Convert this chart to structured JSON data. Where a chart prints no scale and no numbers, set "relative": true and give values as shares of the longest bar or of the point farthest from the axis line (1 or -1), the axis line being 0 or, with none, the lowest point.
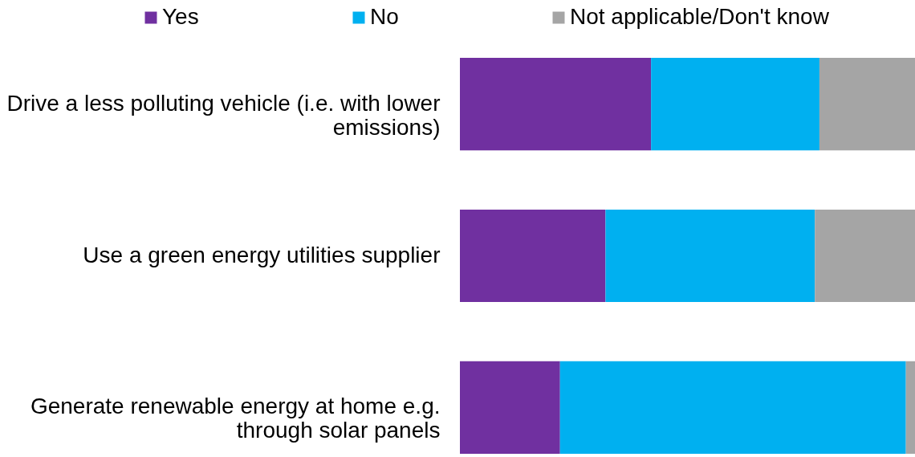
{
  "chart_data": {
    "type": "bar",
    "orientation": "horizontal",
    "stacked": true,
    "relative": true,
    "legend": "top",
    "categories": [
      "Drive a less polluting vehicle (i.e. with lower emissions)",
      "Use a green energy utilities supplier",
      "Generate renewable energy at home e.g. through solar panels"
    ],
    "series": [
      {
        "name": "Yes",
        "color": "#7030a0",
        "values": [
          0.42,
          0.32,
          0.22
        ]
      },
      {
        "name": "No",
        "color": "#00b0f0",
        "values": [
          0.37,
          0.46,
          0.76
        ]
      },
      {
        "name": "Not applicable/Don't know",
        "color": "#a5a5a5",
        "values": [
          0.21,
          0.22,
          0.02
        ]
      }
    ]
  }
}
